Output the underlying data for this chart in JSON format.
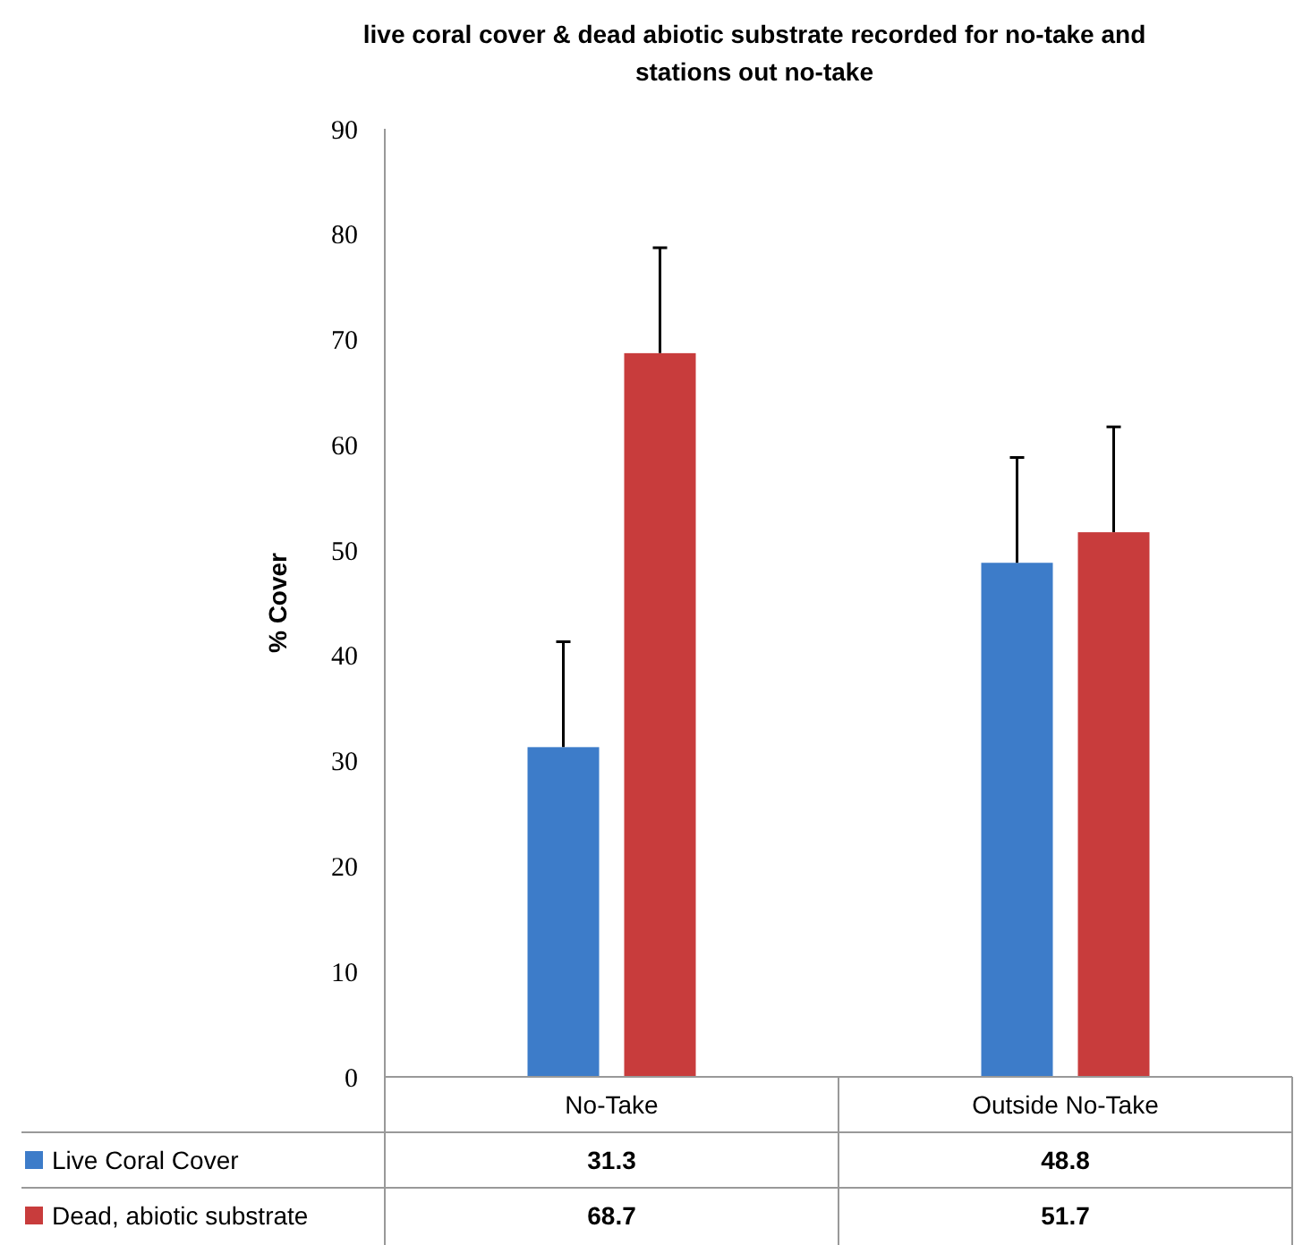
{
  "chart_data": {
    "type": "bar",
    "title": "live coral cover & dead abiotic substrate recorded for no-take and stations out no-take",
    "ylabel": "% Cover",
    "categories": [
      "No-Take",
      "Outside No-Take"
    ],
    "series": [
      {
        "name": "Live Coral Cover",
        "color": "#3d7cc9",
        "values": [
          31.3,
          48.8
        ],
        "errors": [
          10,
          10
        ]
      },
      {
        "name": "Dead, abiotic substrate",
        "color": "#c83c3c",
        "values": [
          68.7,
          51.7
        ],
        "errors": [
          10,
          10
        ]
      }
    ],
    "ylim": [
      0,
      90
    ],
    "yticks": [
      0,
      10,
      20,
      30,
      40,
      50,
      60,
      70,
      80,
      90
    ],
    "grid": false,
    "legend": "bottom",
    "data_labels": true
  }
}
